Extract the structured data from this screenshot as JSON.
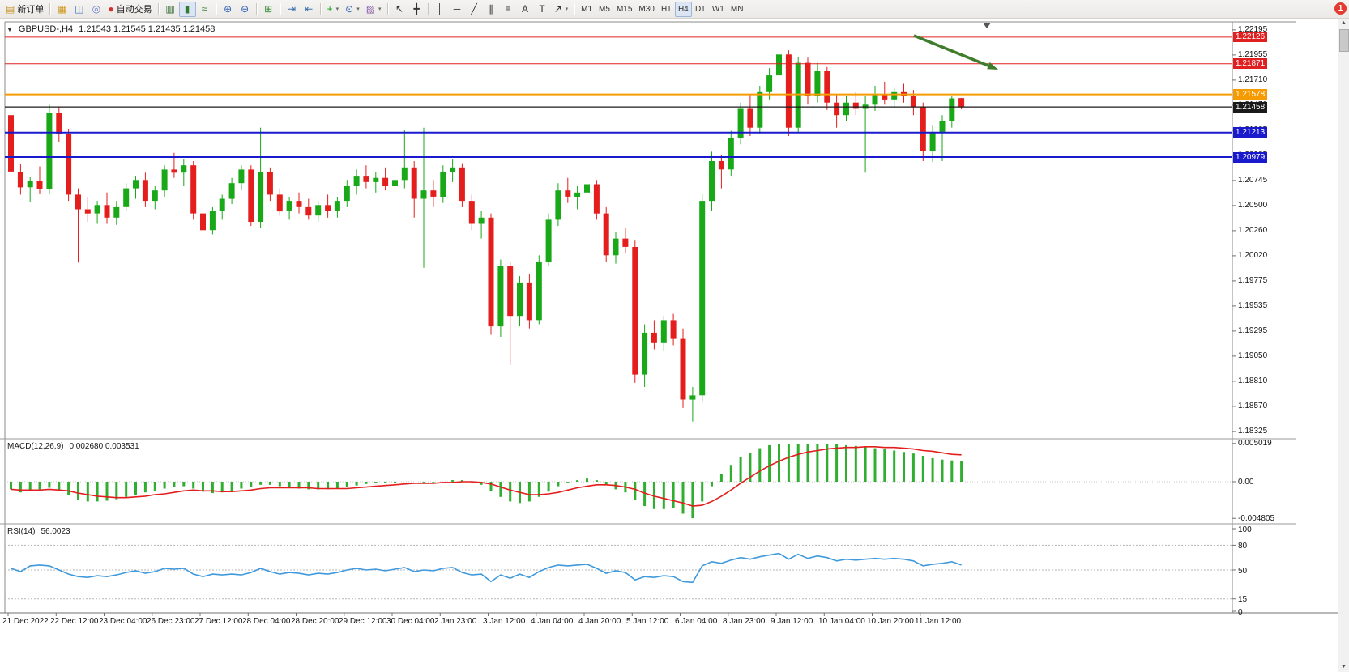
{
  "icons": {
    "collapse": "▼",
    "scroll_up": "▲",
    "scroll_down": "▼"
  },
  "toolbar": {
    "badge": "1",
    "groups": [
      {
        "items": [
          {
            "name": "new-order",
            "label": "新订单",
            "glyph": "▤",
            "color": "#c8972b"
          }
        ]
      },
      {
        "items": [
          {
            "name": "market-watch",
            "glyph": "▦",
            "color": "#cf9a1f"
          },
          {
            "name": "data-window",
            "glyph": "◫",
            "color": "#3a6fc4"
          },
          {
            "name": "navigator",
            "glyph": "◎",
            "color": "#6a7ccc"
          },
          {
            "name": "auto-trading",
            "label": "自动交易",
            "glyph": "●",
            "color": "#d43030"
          }
        ]
      },
      {
        "items": [
          {
            "name": "bar-chart",
            "glyph": "▥",
            "color": "#356b35"
          },
          {
            "name": "candlestick-chart",
            "glyph": "▮",
            "color": "#2e7d32",
            "active": true
          },
          {
            "name": "line-chart",
            "glyph": "≈",
            "color": "#2e7d32"
          }
        ]
      },
      {
        "items": [
          {
            "name": "zoom-in",
            "glyph": "⊕",
            "color": "#2b5fb4"
          },
          {
            "name": "zoom-out",
            "glyph": "⊖",
            "color": "#2b5fb4"
          }
        ]
      },
      {
        "items": [
          {
            "name": "tile-windows",
            "glyph": "⊞",
            "color": "#2e8b2e"
          }
        ]
      },
      {
        "items": [
          {
            "name": "auto-scroll",
            "glyph": "⇥",
            "color": "#3d6fb0"
          },
          {
            "name": "chart-shift",
            "glyph": "⇤",
            "color": "#3d6fb0"
          }
        ]
      },
      {
        "items": [
          {
            "name": "indicators",
            "glyph": "+",
            "color": "#13a113",
            "caret": true
          },
          {
            "name": "periods",
            "glyph": "⊙",
            "color": "#2b5fb4",
            "caret": true
          },
          {
            "name": "templates",
            "glyph": "▨",
            "color": "#8253a8",
            "caret": true
          }
        ]
      },
      {
        "items": [
          {
            "name": "cursor",
            "glyph": "↖",
            "color": "#333333"
          },
          {
            "name": "crosshair",
            "glyph": "╋",
            "color": "#333333"
          }
        ]
      },
      {
        "items": [
          {
            "name": "vertical-line",
            "glyph": "│",
            "color": "#333333"
          },
          {
            "name": "horizontal-line",
            "glyph": "─",
            "color": "#333333"
          },
          {
            "name": "trendline",
            "glyph": "╱",
            "color": "#333333"
          },
          {
            "name": "equidistant-channel",
            "glyph": "∥",
            "color": "#333333"
          },
          {
            "name": "fibonacci",
            "glyph": "≡",
            "color": "#333333"
          },
          {
            "name": "text",
            "glyph": "A",
            "color": "#333333"
          },
          {
            "name": "text-label",
            "glyph": "T",
            "color": "#333333"
          },
          {
            "name": "arrows",
            "glyph": "↗",
            "color": "#333333",
            "caret": true
          }
        ]
      },
      {
        "items": [
          {
            "name": "tf-m1",
            "label": "M1"
          },
          {
            "name": "tf-m5",
            "label": "M5"
          },
          {
            "name": "tf-m15",
            "label": "M15"
          },
          {
            "name": "tf-m30",
            "label": "M30"
          },
          {
            "name": "tf-h1",
            "label": "H1"
          },
          {
            "name": "tf-h4",
            "label": "H4",
            "active": true
          },
          {
            "name": "tf-d1",
            "label": "D1"
          },
          {
            "name": "tf-w1",
            "label": "W1"
          },
          {
            "name": "tf-mn",
            "label": "MN"
          }
        ]
      }
    ]
  },
  "chart_data": {
    "type": "candlestick",
    "symbol_tf_text": "GBPUSD-,H4",
    "ohlc_text": "1.21543 1.21545 1.21435 1.21458",
    "current_price": 1.21458,
    "current_price_text": "1.21458",
    "current_price_color": "#1a1a1a",
    "levels": [
      {
        "price": 1.22126,
        "text": "1.22126",
        "color": "#e02020",
        "width": 1
      },
      {
        "price": 1.21871,
        "text": "1.21871",
        "color": "#e02020",
        "width": 1
      },
      {
        "price": 1.21578,
        "text": "1.21578",
        "color": "#f59a00",
        "width": 2
      },
      {
        "price": 1.21213,
        "text": "1.21213",
        "color": "#1a1acd",
        "width": 2
      },
      {
        "price": 1.20979,
        "text": "1.20979",
        "color": "#1a1acd",
        "width": 2
      }
    ],
    "price_scale": [
      "1.22195",
      "1.21955",
      "1.21710",
      "1.21470",
      "1.21225",
      "1.20985",
      "1.20745",
      "1.20500",
      "1.20260",
      "1.20020",
      "1.19775",
      "1.19535",
      "1.19295",
      "1.19050",
      "1.18810",
      "1.18570",
      "1.18325"
    ],
    "time_labels": [
      "21 Dec 2022",
      "22 Dec 12:00",
      "23 Dec 04:00",
      "26 Dec 23:00",
      "27 Dec 12:00",
      "28 Dec 04:00",
      "28 Dec 20:00",
      "29 Dec 12:00",
      "30 Dec 04:00",
      "2 Jan 23:00",
      "3 Jan 12:00",
      "4 Jan 04:00",
      "4 Jan 20:00",
      "5 Jan 12:00",
      "6 Jan 04:00",
      "8 Jan 23:00",
      "9 Jan 12:00",
      "10 Jan 04:00",
      "10 Jan 20:00",
      "11 Jan 12:00"
    ],
    "candles": [
      [
        1.2138,
        1.2148,
        1.2076,
        1.2084
      ],
      [
        1.2084,
        1.2091,
        1.2062,
        1.2069
      ],
      [
        1.2069,
        1.2079,
        1.2055,
        1.2075
      ],
      [
        1.2075,
        1.2089,
        1.2063,
        1.2067
      ],
      [
        1.2067,
        1.2148,
        1.2063,
        1.214
      ],
      [
        1.214,
        1.2146,
        1.2112,
        1.212
      ],
      [
        1.212,
        1.2125,
        1.2056,
        1.2062
      ],
      [
        1.2062,
        1.2068,
        1.1997,
        1.2048
      ],
      [
        1.2048,
        1.206,
        1.2036,
        1.2044
      ],
      [
        1.2044,
        1.2056,
        1.2034,
        1.2052
      ],
      [
        1.2052,
        1.2064,
        1.2034,
        1.204
      ],
      [
        1.204,
        1.2056,
        1.2033,
        1.205
      ],
      [
        1.205,
        1.2073,
        1.2046,
        1.2068
      ],
      [
        1.2068,
        1.208,
        1.2058,
        1.2076
      ],
      [
        1.2076,
        1.2083,
        1.205,
        1.2056
      ],
      [
        1.2056,
        1.207,
        1.2048,
        1.2066
      ],
      [
        1.2066,
        1.209,
        1.206,
        1.2086
      ],
      [
        1.2086,
        1.2102,
        1.2078,
        1.2083
      ],
      [
        1.2083,
        1.2096,
        1.207,
        1.209
      ],
      [
        1.209,
        1.2094,
        1.2038,
        1.2044
      ],
      [
        1.2044,
        1.205,
        1.2016,
        1.2028
      ],
      [
        1.2028,
        1.205,
        1.2024,
        1.2046
      ],
      [
        1.2046,
        1.2062,
        1.2038,
        1.2058
      ],
      [
        1.2058,
        1.2078,
        1.2053,
        1.2073
      ],
      [
        1.2073,
        1.209,
        1.2066,
        1.2086
      ],
      [
        1.2086,
        1.209,
        1.2032,
        1.2036
      ],
      [
        1.2036,
        1.2126,
        1.203,
        1.2084
      ],
      [
        1.2084,
        1.2088,
        1.2056,
        1.2062
      ],
      [
        1.2062,
        1.2068,
        1.2042,
        1.2046
      ],
      [
        1.2046,
        1.206,
        1.2038,
        1.2056
      ],
      [
        1.2056,
        1.2064,
        1.2044,
        1.205
      ],
      [
        1.205,
        1.2058,
        1.2038,
        1.2042
      ],
      [
        1.2042,
        1.2056,
        1.2036,
        1.2052
      ],
      [
        1.2052,
        1.2062,
        1.204,
        1.2046
      ],
      [
        1.2046,
        1.206,
        1.204,
        1.2056
      ],
      [
        1.2056,
        1.2076,
        1.205,
        1.207
      ],
      [
        1.207,
        1.2086,
        1.2062,
        1.208
      ],
      [
        1.208,
        1.209,
        1.2068,
        1.2074
      ],
      [
        1.2074,
        1.2084,
        1.2064,
        1.2078
      ],
      [
        1.2078,
        1.2088,
        1.2066,
        1.207
      ],
      [
        1.207,
        1.208,
        1.2056,
        1.2076
      ],
      [
        1.2076,
        1.2124,
        1.2068,
        1.2088
      ],
      [
        1.2088,
        1.2094,
        1.204,
        1.2058
      ],
      [
        1.2058,
        1.2126,
        1.1992,
        1.2066
      ],
      [
        1.2066,
        1.2076,
        1.205,
        1.206
      ],
      [
        1.206,
        1.209,
        1.2054,
        1.2084
      ],
      [
        1.2084,
        1.2096,
        1.2074,
        1.2088
      ],
      [
        1.2088,
        1.2092,
        1.205,
        1.2056
      ],
      [
        1.2056,
        1.2062,
        1.2028,
        1.2034
      ],
      [
        1.2034,
        1.2046,
        1.202,
        1.204
      ],
      [
        1.204,
        1.2044,
        1.1928,
        1.1936
      ],
      [
        1.1936,
        1.2,
        1.1926,
        1.1994
      ],
      [
        1.1994,
        1.1998,
        1.1899,
        1.1946
      ],
      [
        1.1946,
        1.1984,
        1.1936,
        1.1978
      ],
      [
        1.1978,
        1.1986,
        1.1934,
        1.1942
      ],
      [
        1.1942,
        1.2004,
        1.1938,
        1.1998
      ],
      [
        1.1998,
        1.2044,
        1.1994,
        1.2038
      ],
      [
        1.2038,
        1.2073,
        1.2032,
        1.2066
      ],
      [
        1.2066,
        1.2078,
        1.2054,
        1.206
      ],
      [
        1.206,
        1.207,
        1.2048,
        1.2064
      ],
      [
        1.2064,
        1.2083,
        1.2058,
        1.2072
      ],
      [
        1.2072,
        1.2076,
        1.2038,
        1.2044
      ],
      [
        1.2044,
        1.205,
        1.1998,
        1.2004
      ],
      [
        1.2004,
        1.2026,
        1.1996,
        1.202
      ],
      [
        1.202,
        1.203,
        1.2006,
        1.2012
      ],
      [
        1.2012,
        1.2018,
        1.1882,
        1.189
      ],
      [
        1.189,
        1.1938,
        1.1878,
        1.193
      ],
      [
        1.193,
        1.1942,
        1.1914,
        1.192
      ],
      [
        1.192,
        1.1946,
        1.1912,
        1.1942
      ],
      [
        1.1942,
        1.1948,
        1.1918,
        1.1924
      ],
      [
        1.1924,
        1.1934,
        1.1858,
        1.1866
      ],
      [
        1.1866,
        1.1878,
        1.1845,
        1.187
      ],
      [
        1.187,
        1.2063,
        1.1864,
        1.2056
      ],
      [
        1.2056,
        1.2103,
        1.2046,
        1.2094
      ],
      [
        1.2094,
        1.21,
        1.2068,
        1.2086
      ],
      [
        1.2086,
        1.2123,
        1.208,
        1.2116
      ],
      [
        1.2116,
        1.215,
        1.211,
        1.2144
      ],
      [
        1.2144,
        1.2158,
        1.2118,
        1.2126
      ],
      [
        1.2126,
        1.2166,
        1.212,
        1.216
      ],
      [
        1.216,
        1.2183,
        1.2153,
        1.2176
      ],
      [
        1.2176,
        1.2208,
        1.2168,
        1.2196
      ],
      [
        1.2196,
        1.22,
        1.2118,
        1.2126
      ],
      [
        1.2126,
        1.2194,
        1.2122,
        1.2188
      ],
      [
        1.2188,
        1.2193,
        1.2148,
        1.2156
      ],
      [
        1.2156,
        1.2188,
        1.215,
        1.218
      ],
      [
        1.218,
        1.2184,
        1.2143,
        1.215
      ],
      [
        1.215,
        1.2158,
        1.2126,
        1.2138
      ],
      [
        1.2138,
        1.2156,
        1.2132,
        1.215
      ],
      [
        1.215,
        1.216,
        1.2138,
        1.2144
      ],
      [
        1.2144,
        1.2156,
        1.2083,
        1.2148
      ],
      [
        1.2148,
        1.2166,
        1.2142,
        1.2158
      ],
      [
        1.2158,
        1.217,
        1.2148,
        1.2153
      ],
      [
        1.2153,
        1.2164,
        1.2146,
        1.216
      ],
      [
        1.216,
        1.2168,
        1.215,
        1.2156
      ],
      [
        1.2156,
        1.2162,
        1.2138,
        1.2146
      ],
      [
        1.2146,
        1.215,
        1.2094,
        1.2104
      ],
      [
        1.2104,
        1.2128,
        1.2093,
        1.2122
      ],
      [
        1.2122,
        1.2138,
        1.2094,
        1.2132
      ],
      [
        1.2132,
        1.2156,
        1.2126,
        1.2154
      ],
      [
        1.21543,
        1.21545,
        1.21435,
        1.21458
      ]
    ],
    "macd": {
      "label": "MACD(12,26,9)",
      "values_text": "0.002680 0.003531",
      "scale": [
        "0.005019",
        "0.00",
        "-0.004805"
      ],
      "histogram": [
        -0.001,
        -0.0014,
        -0.0012,
        -0.001,
        -0.0008,
        -0.0012,
        -0.0018,
        -0.0024,
        -0.0026,
        -0.0026,
        -0.0025,
        -0.0023,
        -0.002,
        -0.0017,
        -0.0014,
        -0.0012,
        -0.0009,
        -0.0007,
        -0.0006,
        -0.0009,
        -0.0013,
        -0.0015,
        -0.0014,
        -0.0012,
        -0.0009,
        -0.0007,
        -0.0004,
        -0.0004,
        -0.0006,
        -0.0008,
        -0.0009,
        -0.001,
        -0.001,
        -0.001,
        -0.0009,
        -0.0007,
        -0.0005,
        -0.0003,
        -0.0002,
        -0.0002,
        -0.0002,
        0.0,
        0.0,
        -0.0001,
        -0.0001,
        0.0,
        0.0002,
        0.0002,
        -0.0001,
        -0.0004,
        -0.0012,
        -0.002,
        -0.0026,
        -0.0028,
        -0.0026,
        -0.002,
        -0.0013,
        -0.0006,
        -0.0001,
        0.0002,
        0.0004,
        0.0002,
        -0.0004,
        -0.001,
        -0.0014,
        -0.0024,
        -0.0032,
        -0.0036,
        -0.0036,
        -0.0034,
        -0.0042,
        -0.0048,
        -0.0026,
        -0.0006,
        0.001,
        0.0022,
        0.0032,
        0.0038,
        0.0044,
        0.0048,
        0.005,
        0.005,
        0.005,
        0.005,
        0.005,
        0.005,
        0.0049,
        0.0048,
        0.0047,
        0.0046,
        0.0044,
        0.0043,
        0.0041,
        0.0039,
        0.0037,
        0.0034,
        0.0031,
        0.0029,
        0.0028,
        0.00268
      ],
      "signal": [
        -0.001,
        -0.0011,
        -0.0011,
        -0.0011,
        -0.001,
        -0.0011,
        -0.0012,
        -0.0015,
        -0.0017,
        -0.0019,
        -0.002,
        -0.0021,
        -0.0021,
        -0.002,
        -0.0019,
        -0.0017,
        -0.0016,
        -0.0014,
        -0.0012,
        -0.0011,
        -0.0012,
        -0.0012,
        -0.0013,
        -0.0013,
        -0.0012,
        -0.0011,
        -0.0009,
        -0.0008,
        -0.0008,
        -0.0008,
        -0.0008,
        -0.0008,
        -0.0009,
        -0.0009,
        -0.0009,
        -0.0009,
        -0.0008,
        -0.0007,
        -0.0006,
        -0.0005,
        -0.0004,
        -0.0003,
        -0.0002,
        -0.0002,
        -0.0002,
        -0.0001,
        -0.0001,
        0.0,
        0.0,
        -0.0001,
        -0.0003,
        -0.0007,
        -0.0011,
        -0.0014,
        -0.0017,
        -0.0017,
        -0.0016,
        -0.0014,
        -0.0011,
        -0.0008,
        -0.0006,
        -0.0004,
        -0.0004,
        -0.0005,
        -0.0007,
        -0.001,
        -0.0015,
        -0.0019,
        -0.0022,
        -0.0025,
        -0.0028,
        -0.0032,
        -0.0031,
        -0.0026,
        -0.0019,
        -0.0011,
        -0.0002,
        0.0006,
        0.0014,
        0.0021,
        0.0027,
        0.0032,
        0.0036,
        0.0039,
        0.0041,
        0.0043,
        0.0044,
        0.0045,
        0.0045,
        0.0046,
        0.0046,
        0.0045,
        0.0045,
        0.0044,
        0.0043,
        0.0041,
        0.004,
        0.0038,
        0.0036,
        0.00353
      ]
    },
    "rsi": {
      "label": "RSI(14)",
      "value_text": "56.0023",
      "scale": [
        "100",
        "80",
        "50",
        "15",
        "0"
      ],
      "levels": [
        80,
        50,
        15
      ],
      "series": [
        52,
        48,
        55,
        56,
        55,
        50,
        45,
        42,
        41,
        43,
        42,
        44,
        47,
        49,
        46,
        48,
        52,
        51,
        52,
        45,
        42,
        45,
        44,
        45,
        44,
        47,
        52,
        48,
        45,
        47,
        46,
        44,
        46,
        45,
        47,
        50,
        52,
        50,
        51,
        49,
        51,
        53,
        48,
        50,
        49,
        52,
        53,
        47,
        44,
        45,
        36,
        44,
        40,
        45,
        41,
        48,
        53,
        56,
        55,
        56,
        57,
        52,
        46,
        49,
        47,
        38,
        42,
        41,
        43,
        42,
        36,
        35,
        55,
        60,
        58,
        62,
        65,
        63,
        66,
        68,
        70,
        63,
        69,
        64,
        67,
        65,
        61,
        63,
        62,
        63,
        64,
        63,
        64,
        63,
        61,
        55,
        57,
        58,
        60,
        56
      ]
    },
    "annotation_arrow": {
      "color": "#3f7d2c",
      "from": [
        1128,
        44
      ],
      "to": [
        1232,
        86
      ]
    }
  }
}
